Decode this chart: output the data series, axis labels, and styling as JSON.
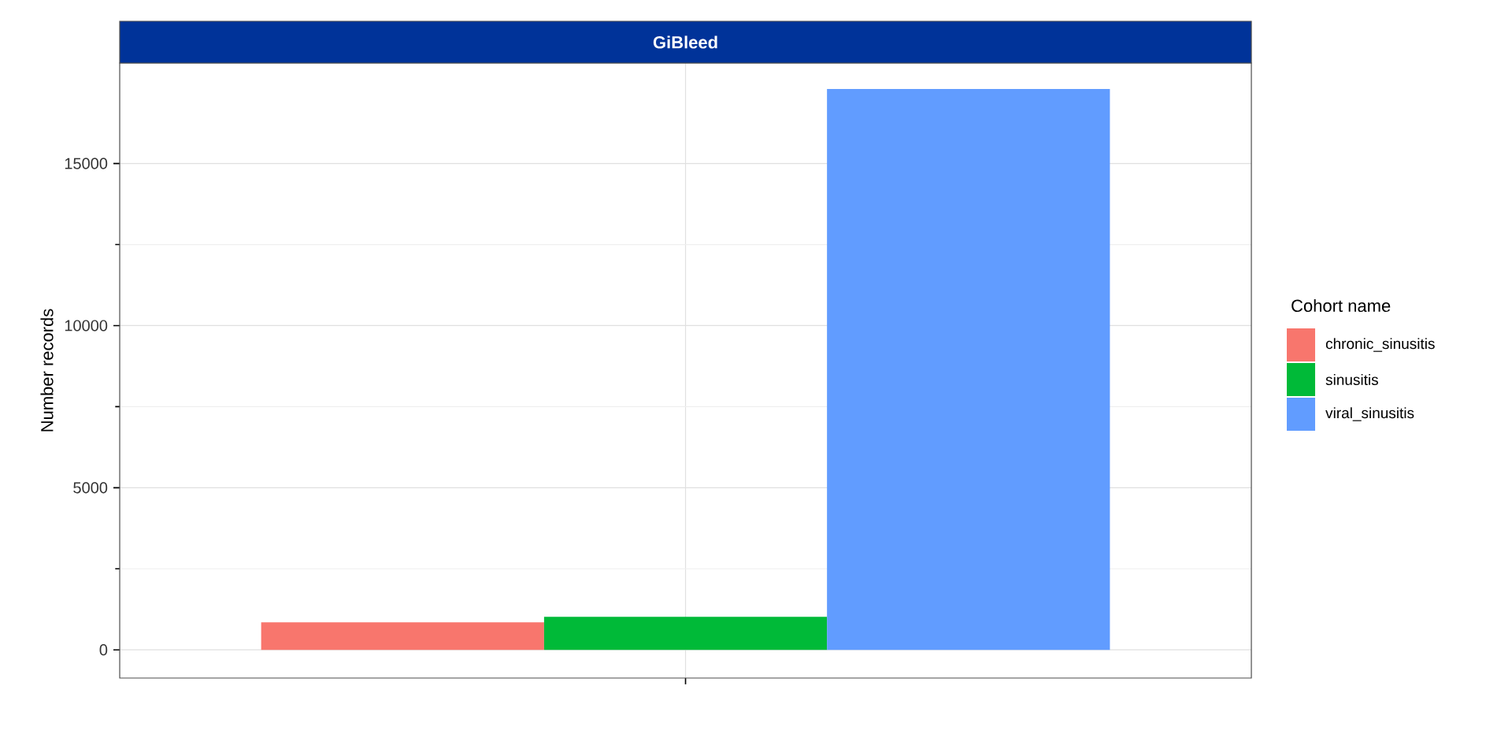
{
  "chart_data": {
    "type": "bar",
    "title": "GiBleed",
    "ylabel": "Number records",
    "legend_title": "Cohort name",
    "categories": [
      null
    ],
    "series": [
      {
        "name": "chronic_sinusitis",
        "color": "#f8766d",
        "values": [
          850
        ]
      },
      {
        "name": "sinusitis",
        "color": "#00ba38",
        "values": [
          1020
        ]
      },
      {
        "name": "viral_sinusitis",
        "color": "#619cff",
        "values": [
          17300
        ]
      }
    ],
    "ylim": [
      -870,
      18100
    ],
    "yticks": [
      0,
      5000,
      10000,
      15000
    ],
    "grid": true,
    "legend": "right"
  }
}
